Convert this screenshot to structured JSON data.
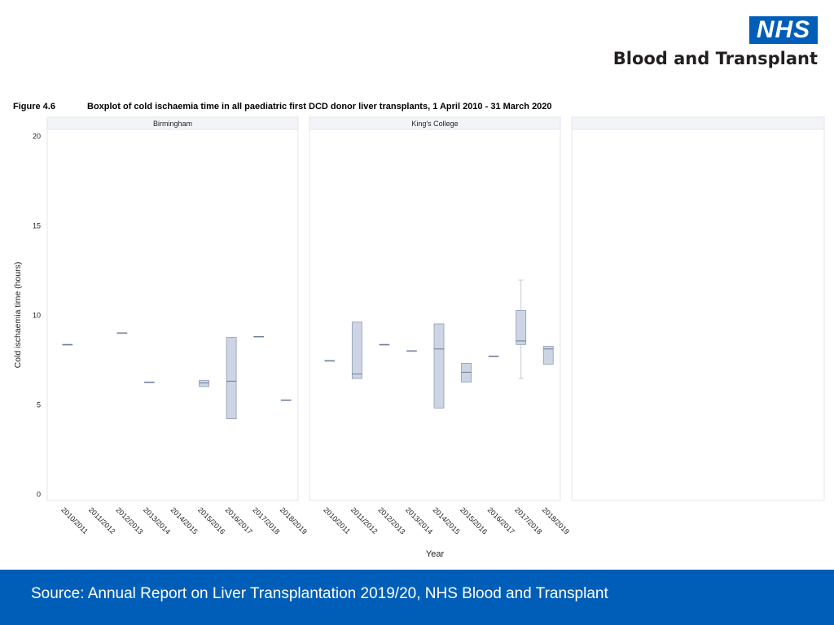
{
  "header": {
    "logo_mark": "NHS",
    "org_name": "Blood and Transplant",
    "brand_color": "#005EB8"
  },
  "figure": {
    "label": "Figure 4.6",
    "title": "Boxplot of cold ischaemia time in all paediatric first DCD donor liver transplants, 1 April 2010 - 31 March 2020"
  },
  "chart_data": {
    "type": "boxplot",
    "ylabel": "Cold ischaemia time (hours)",
    "xlabel": "Year",
    "ylim": [
      0,
      20
    ],
    "yticks": [
      0,
      5,
      10,
      15,
      20
    ],
    "categories": [
      "2010/2011",
      "2011/2012",
      "2012/2013",
      "2013/2014",
      "2014/2015",
      "2015/2016",
      "2016/2017",
      "2017/2018",
      "2018/2019"
    ],
    "box_color": "#cdd5e4",
    "box_stroke": "#8c9ab5",
    "panels": [
      {
        "name": "Birmingham",
        "boxes": [
          {
            "category": "2010/2011",
            "min": 8.35,
            "q1": 8.35,
            "median": 8.35,
            "q3": 8.35,
            "max": 8.35
          },
          {
            "category": "2012/2013",
            "min": 9.0,
            "q1": 9.0,
            "median": 9.0,
            "q3": 9.0,
            "max": 9.0
          },
          {
            "category": "2013/2014",
            "min": 6.25,
            "q1": 6.25,
            "median": 6.25,
            "q3": 6.25,
            "max": 6.25
          },
          {
            "category": "2015/2016",
            "min": 6.0,
            "q1": 6.0,
            "median": 6.2,
            "q3": 6.35,
            "max": 6.35
          },
          {
            "category": "2016/2017",
            "min": 4.2,
            "q1": 4.2,
            "median": 6.3,
            "q3": 8.75,
            "max": 8.75
          },
          {
            "category": "2017/2018",
            "min": 8.8,
            "q1": 8.8,
            "median": 8.8,
            "q3": 8.8,
            "max": 8.8
          },
          {
            "category": "2018/2019",
            "min": 5.25,
            "q1": 5.25,
            "median": 5.25,
            "q3": 5.25,
            "max": 5.25
          }
        ]
      },
      {
        "name": "King's College",
        "boxes": [
          {
            "category": "2010/2011",
            "min": 7.45,
            "q1": 7.45,
            "median": 7.45,
            "q3": 7.45,
            "max": 7.45
          },
          {
            "category": "2011/2012",
            "min": 6.45,
            "q1": 6.45,
            "median": 6.7,
            "q3": 9.6,
            "max": 9.6
          },
          {
            "category": "2012/2013",
            "min": 8.35,
            "q1": 8.35,
            "median": 8.35,
            "q3": 8.35,
            "max": 8.35
          },
          {
            "category": "2013/2014",
            "min": 8.0,
            "q1": 8.0,
            "median": 8.0,
            "q3": 8.0,
            "max": 8.0
          },
          {
            "category": "2014/2015",
            "min": 4.8,
            "q1": 4.8,
            "median": 8.1,
            "q3": 9.5,
            "max": 9.5
          },
          {
            "category": "2015/2016",
            "min": 6.25,
            "q1": 6.25,
            "median": 6.8,
            "q3": 7.3,
            "max": 7.3
          },
          {
            "category": "2016/2017",
            "min": 7.7,
            "q1": 7.7,
            "median": 7.7,
            "q3": 7.7,
            "max": 7.7
          },
          {
            "category": "2017/2018",
            "min": 6.45,
            "q1": 8.35,
            "median": 8.55,
            "q3": 10.25,
            "max": 11.95
          },
          {
            "category": "2018/2019",
            "min": 7.25,
            "q1": 7.25,
            "median": 8.1,
            "q3": 8.25,
            "max": 8.25
          }
        ]
      },
      {
        "name": "",
        "boxes": []
      }
    ]
  },
  "footer": {
    "source": "Source: Annual Report on Liver Transplantation 2019/20, NHS Blood and Transplant"
  }
}
